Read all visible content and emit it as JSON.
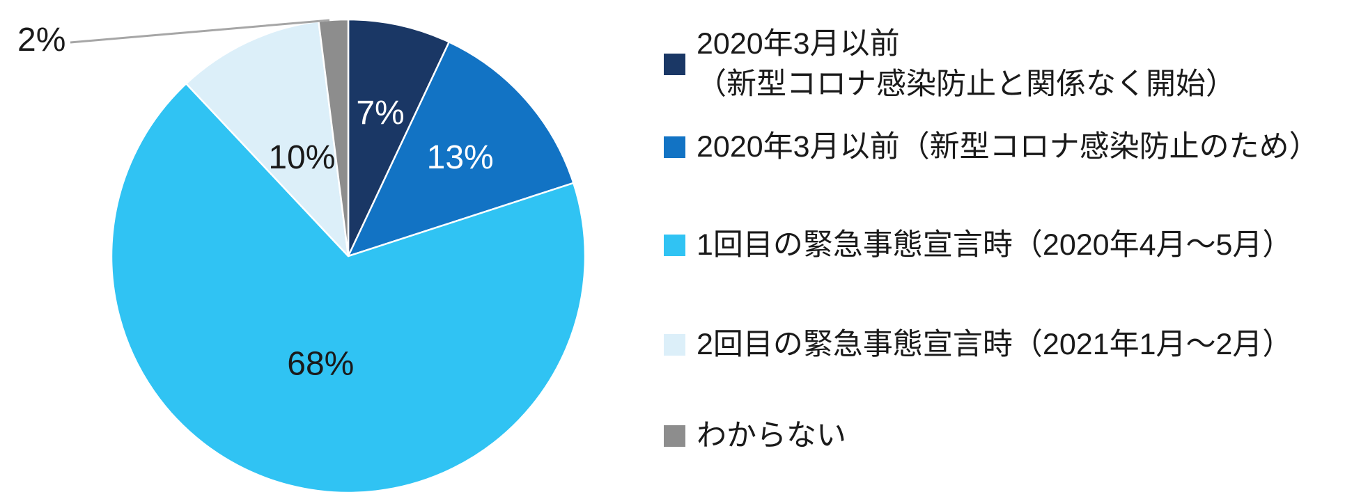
{
  "chart_data": {
    "type": "pie",
    "title": "",
    "start_angle_deg": 0,
    "direction": "clockwise",
    "legend_position": "right",
    "background_color": "#FFFFFF",
    "leader_line_color": "#A6A6A6",
    "outside_label_color": "#1A1A1A",
    "slices": [
      {
        "label": "2020年3月以前（新型コロナ感染防止と関係なく開始）",
        "legend_label": "2020年3月以前\n（新型コロナ感染防止と関係なく開始）",
        "value": 7,
        "pct_label": "7%",
        "color": "#1A3765",
        "pct_label_color": "#FFFFFF",
        "callout": false
      },
      {
        "label": "2020年3月以前（新型コロナ感染防止のため）",
        "legend_label": "2020年3月以前（新型コロナ感染防止のため）",
        "value": 13,
        "pct_label": "13%",
        "color": "#1273C4",
        "pct_label_color": "#FFFFFF",
        "callout": false
      },
      {
        "label": "1回目の緊急事態宣言時（2020年4月～5月）",
        "legend_label": "1回目の緊急事態宣言時（2020年4月～5月）",
        "value": 68,
        "pct_label": "68%",
        "color": "#30C3F3",
        "pct_label_color": "#1A1A1A",
        "callout": false
      },
      {
        "label": "2回目の緊急事態宣言時（2021年1月～2月）",
        "legend_label": "2回目の緊急事態宣言時（2021年1月～2月）",
        "value": 10,
        "pct_label": "10%",
        "color": "#DCEFF9",
        "pct_label_color": "#1A1A1A",
        "callout": false
      },
      {
        "label": "わからない",
        "legend_label": "わからない",
        "value": 2,
        "pct_label": "2%",
        "color": "#8D8D8D",
        "pct_label_color": "#1A1A1A",
        "callout": true
      }
    ]
  }
}
